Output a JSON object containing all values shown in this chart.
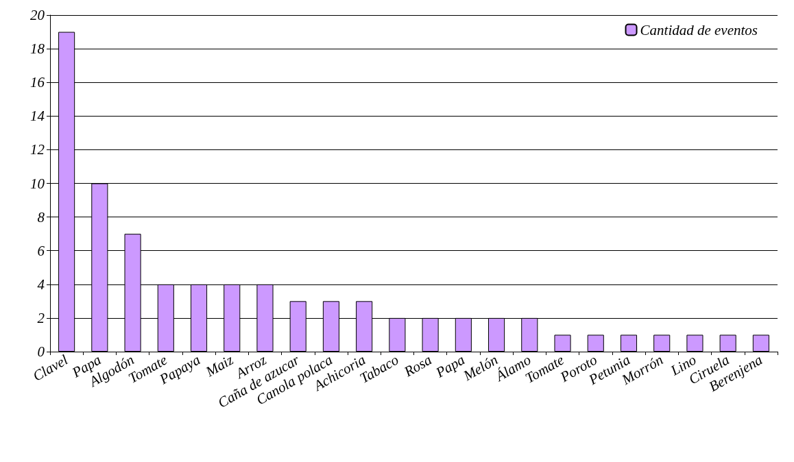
{
  "chart_data": {
    "type": "bar",
    "categories": [
      "Clavel",
      "Papa",
      "Algodón",
      "Tomate",
      "Papaya",
      "Maiz",
      "Arroz",
      "Caña de azucar",
      "Canola polaca",
      "Achicoria",
      "Tabaco",
      "Rosa",
      "Papa",
      "Melón",
      "Álamo",
      "Tomate",
      "Poroto",
      "Petunia",
      "Morrón",
      "Lino",
      "Ciruela",
      "Berenjena"
    ],
    "series": [
      {
        "name": "Cantidad de eventos",
        "color": "#cc99ff",
        "values": [
          19,
          10,
          7,
          4,
          4,
          4,
          4,
          3,
          3,
          3,
          2,
          2,
          2,
          2,
          2,
          1,
          1,
          1,
          1,
          1,
          1,
          1
        ]
      }
    ],
    "ylim": [
      0,
      20
    ],
    "yticks": [
      0,
      2,
      4,
      6,
      8,
      10,
      12,
      14,
      16,
      18,
      20
    ],
    "grid": "y",
    "legend": "top right"
  }
}
